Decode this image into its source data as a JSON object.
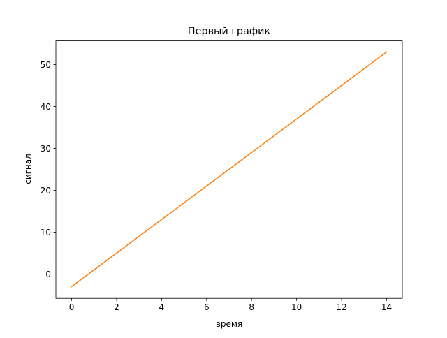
{
  "chart_data": {
    "type": "line",
    "title": "Первый график",
    "xlabel": "время",
    "ylabel": "сигнал",
    "xlim": [
      -0.7,
      14.7
    ],
    "ylim": [
      -5.8,
      55.8
    ],
    "xticks": [
      0,
      2,
      4,
      6,
      8,
      10,
      12,
      14
    ],
    "yticks": [
      0,
      10,
      20,
      30,
      40,
      50
    ],
    "grid": false,
    "series": [
      {
        "color": "#ff7f0e",
        "x": [
          0,
          1,
          2,
          3,
          4,
          5,
          6,
          7,
          8,
          9,
          10,
          11,
          12,
          13,
          14
        ],
        "y": [
          -3,
          1,
          5,
          9,
          13,
          17,
          21,
          25,
          29,
          33,
          37,
          41,
          45,
          49,
          53
        ]
      }
    ]
  }
}
